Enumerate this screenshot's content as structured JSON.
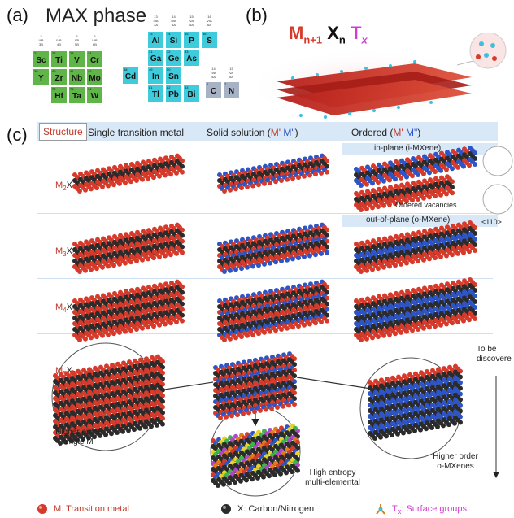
{
  "panel_a": {
    "letter": "(a)",
    "title": "MAX phase",
    "elements": [
      {
        "sym": "Sc",
        "num": "21",
        "group": "M"
      },
      {
        "sym": "Ti",
        "num": "22",
        "group": "M"
      },
      {
        "sym": "V",
        "num": "23",
        "group": "M"
      },
      {
        "sym": "Cr",
        "num": "24",
        "group": "M"
      },
      {
        "sym": "Y",
        "num": "39",
        "group": "M"
      },
      {
        "sym": "Zr",
        "num": "40",
        "group": "M"
      },
      {
        "sym": "Nb",
        "num": "41",
        "group": "M"
      },
      {
        "sym": "Mo",
        "num": "42",
        "group": "M"
      },
      {
        "sym": "Hf",
        "num": "72",
        "group": "M"
      },
      {
        "sym": "Ta",
        "num": "73",
        "group": "M"
      },
      {
        "sym": "W",
        "num": "74",
        "group": "M"
      },
      {
        "sym": "Al",
        "num": "13",
        "group": "A"
      },
      {
        "sym": "Si",
        "num": "14",
        "group": "A"
      },
      {
        "sym": "P",
        "num": "15",
        "group": "A"
      },
      {
        "sym": "S",
        "num": "16",
        "group": "A"
      },
      {
        "sym": "Ga",
        "num": "31",
        "group": "A"
      },
      {
        "sym": "Ge",
        "num": "32",
        "group": "A"
      },
      {
        "sym": "As",
        "num": "33",
        "group": "A"
      },
      {
        "sym": "Cd",
        "num": "48",
        "group": "A"
      },
      {
        "sym": "In",
        "num": "49",
        "group": "A"
      },
      {
        "sym": "Sn",
        "num": "50",
        "group": "A"
      },
      {
        "sym": "Tl",
        "num": "81",
        "group": "A"
      },
      {
        "sym": "Pb",
        "num": "82",
        "group": "A"
      },
      {
        "sym": "Bi",
        "num": "83",
        "group": "A"
      },
      {
        "sym": "C",
        "num": "6",
        "group": "X"
      },
      {
        "sym": "N",
        "num": "7",
        "group": "X"
      }
    ],
    "group_headers": [
      "3 IIIB 3B",
      "4 IVB 4B",
      "5 VB 5B",
      "6 VIB 6B",
      "13 IIIA 3A",
      "14 IVA 4A",
      "15 VA 5A",
      "16 VIA 6A",
      "14 IVA 4A",
      "15 VA 5A"
    ]
  },
  "panel_b": {
    "letter": "(b)",
    "formula_m": "M",
    "formula_m_sub": "n+1",
    "formula_x": "X",
    "formula_x_sub": "n",
    "formula_t": "T",
    "formula_t_sub": "x"
  },
  "panel_c": {
    "letter": "(c)",
    "structure_label": "Structure",
    "col_single": "Single transition metal",
    "col_solid_prefix": "Solid solution (",
    "col_solid_m1": "M'",
    "col_solid_m2": " M\"",
    "col_solid_suffix": ")",
    "col_ordered_prefix": "Ordered (",
    "col_ordered_m1": "M'",
    "col_ordered_m2": " M\"",
    "col_ordered_suffix": ")",
    "in_plane": "in-plane (i-MXene)",
    "out_of_plane": "out-of-plane (o-MXene)",
    "ordered_vacancies": "Ordered vacancies",
    "direction": "<110>",
    "rows": [
      {
        "m": "M",
        "msub": "2",
        "x": "X",
        "xsub": ""
      },
      {
        "m": "M",
        "msub": "3",
        "x": "X",
        "xsub": "2"
      },
      {
        "m": "M",
        "msub": "4",
        "x": "X",
        "xsub": "3"
      },
      {
        "m": "M",
        "msub": "5",
        "x": "X",
        "xsub": "4"
      }
    ],
    "higher_order_single_1": "Higher order",
    "higher_order_single_2": "single M",
    "higher_order_o_1": "Higher order",
    "higher_order_o_2": "o-MXenes",
    "high_entropy_1": "High entropy",
    "high_entropy_2": "multi-elemental",
    "to_be_1": "To be",
    "to_be_2": "discovere"
  },
  "legend": {
    "m_label": "M: Transition metal",
    "x_label": "X: Carbon/Nitrogen",
    "t_prefix": "T",
    "t_sub": "x",
    "t_suffix": ": Surface groups"
  },
  "colors": {
    "metal": "#d63a2a",
    "carbon": "#2b2b2b",
    "blue_metal": "#2d55c8",
    "surface": "#e27c1b",
    "accent_pink": "#d13bd1"
  }
}
